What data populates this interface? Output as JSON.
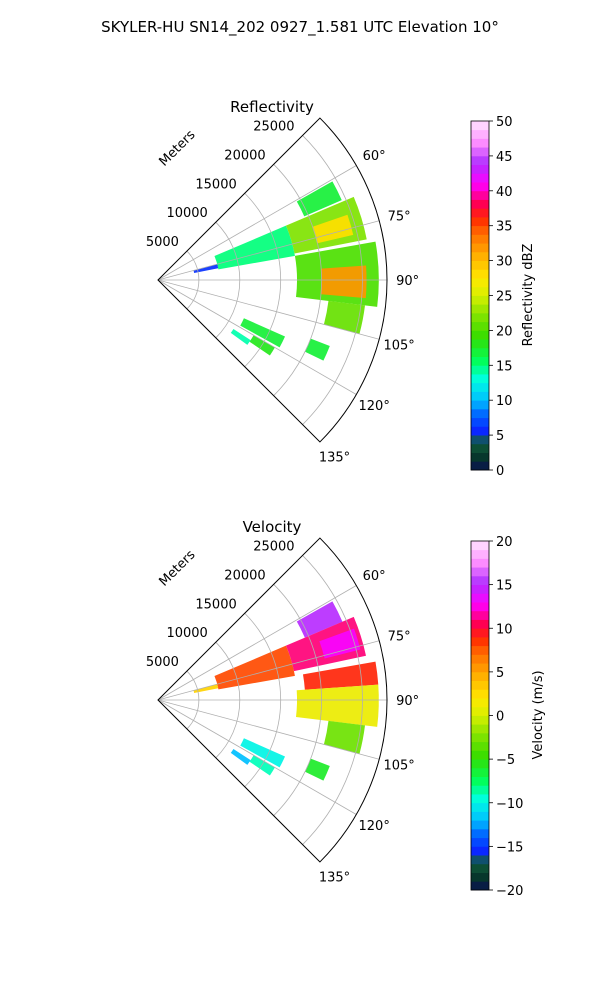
{
  "suptitle": "SKYLER-HU  SN14_202  0927_1.581 UTC Elevation 10°",
  "chart_data": [
    {
      "type": "heatmap",
      "title": "Reflectivity",
      "projection": "polar-sector",
      "theta_range_deg": [
        45,
        135
      ],
      "r_range_m": [
        0,
        28000
      ],
      "r_axis_label": "Meters",
      "r_ticks": [
        5000,
        10000,
        15000,
        20000,
        25000
      ],
      "r_tick_labels": [
        "5000",
        "10000",
        "15000",
        "20000",
        "25000"
      ],
      "theta_ticks": [
        60,
        75,
        90,
        105,
        120,
        135
      ],
      "theta_tick_labels": [
        "60°",
        "75°",
        "90°",
        "105°",
        "120°",
        "135°"
      ],
      "grid": true,
      "colorbar": {
        "label": "Reflectivity dBZ",
        "range": [
          0,
          50
        ],
        "ticks": [
          0,
          5,
          10,
          15,
          20,
          25,
          30,
          35,
          40,
          45,
          50
        ],
        "tick_labels": [
          "0",
          "5",
          "10",
          "15",
          "20",
          "25",
          "30",
          "35",
          "40",
          "45",
          "50"
        ]
      },
      "cells": [
        {
          "theta_range": [
            60.5,
            66.5
          ],
          "r_range": [
            19500,
            24500
          ],
          "value": 17
        },
        {
          "theta_range": [
            67,
            80
          ],
          "r_range": [
            7500,
            17000
          ],
          "value": 15
        },
        {
          "theta_range": [
            67,
            79
          ],
          "r_range": [
            17000,
            26000
          ],
          "value": 22
        },
        {
          "theta_range": [
            71,
            77
          ],
          "r_range": [
            20000,
            24500
          ],
          "value": 28
        },
        {
          "theta_range": [
            75,
            79
          ],
          "r_range": [
            4500,
            7500
          ],
          "value": 6
        },
        {
          "theta_range": [
            80,
            97
          ],
          "r_range": [
            17000,
            27000
          ],
          "value": 20
        },
        {
          "theta_range": [
            86,
            95
          ],
          "r_range": [
            20000,
            25500
          ],
          "value": 32
        },
        {
          "theta_range": [
            97,
            105
          ],
          "r_range": [
            21000,
            25500
          ],
          "value": 21
        },
        {
          "theta_range": [
            111,
            116
          ],
          "r_range": [
            20000,
            22500
          ],
          "value": 17
        },
        {
          "theta_range": [
            114,
            119
          ],
          "r_range": [
            11500,
            17000
          ],
          "value": 17
        },
        {
          "theta_range": [
            120,
            124
          ],
          "r_range": [
            13500,
            16500
          ],
          "value": 18
        },
        {
          "theta_range": [
            123,
            126
          ],
          "r_range": [
            11000,
            13500
          ],
          "value": 14
        }
      ]
    },
    {
      "type": "heatmap",
      "title": "Velocity",
      "projection": "polar-sector",
      "theta_range_deg": [
        45,
        135
      ],
      "r_range_m": [
        0,
        28000
      ],
      "r_axis_label": "Meters",
      "r_ticks": [
        5000,
        10000,
        15000,
        20000,
        25000
      ],
      "r_tick_labels": [
        "5000",
        "10000",
        "15000",
        "20000",
        "25000"
      ],
      "theta_ticks": [
        60,
        75,
        90,
        105,
        120,
        135
      ],
      "theta_tick_labels": [
        "60°",
        "75°",
        "90°",
        "105°",
        "120°",
        "135°"
      ],
      "grid": true,
      "colorbar": {
        "label": "Velocity (m/s)",
        "range": [
          -20,
          20
        ],
        "ticks": [
          -20,
          -15,
          -10,
          -5,
          0,
          5,
          10,
          15,
          20
        ],
        "tick_labels": [
          "−20",
          "−15",
          "−10",
          "−5",
          "0",
          "5",
          "10",
          "15",
          "20"
        ]
      },
      "cells": [
        {
          "theta_range": [
            60.5,
            67
          ],
          "r_range": [
            19500,
            24500
          ],
          "value": 15
        },
        {
          "theta_range": [
            67,
            80
          ],
          "r_range": [
            7500,
            17000
          ],
          "value": 8
        },
        {
          "theta_range": [
            67,
            78
          ],
          "r_range": [
            17000,
            26000
          ],
          "value": 11
        },
        {
          "theta_range": [
            70,
            76
          ],
          "r_range": [
            21000,
            25500
          ],
          "value": 13
        },
        {
          "theta_range": [
            75,
            79
          ],
          "r_range": [
            4500,
            7500
          ],
          "value": 3
        },
        {
          "theta_range": [
            80,
            86
          ],
          "r_range": [
            18000,
            27000
          ],
          "value": 9
        },
        {
          "theta_range": [
            86,
            97
          ],
          "r_range": [
            17000,
            27000
          ],
          "value": 1
        },
        {
          "theta_range": [
            97,
            105
          ],
          "r_range": [
            21000,
            25500
          ],
          "value": -3
        },
        {
          "theta_range": [
            111,
            116
          ],
          "r_range": [
            20000,
            22500
          ],
          "value": -6
        },
        {
          "theta_range": [
            114,
            119
          ],
          "r_range": [
            11500,
            17000
          ],
          "value": -10
        },
        {
          "theta_range": [
            120,
            124
          ],
          "r_range": [
            13500,
            16500
          ],
          "value": -9
        },
        {
          "theta_range": [
            123,
            126
          ],
          "r_range": [
            11000,
            13500
          ],
          "value": -12
        }
      ]
    }
  ],
  "colormap_stops": [
    {
      "at": 0.0,
      "color": "#0a1050"
    },
    {
      "at": 0.04,
      "color": "#073a2a"
    },
    {
      "at": 0.08,
      "color": "#115e3e"
    },
    {
      "at": 0.11,
      "color": "#0a24ff"
    },
    {
      "at": 0.16,
      "color": "#0066ff"
    },
    {
      "at": 0.2,
      "color": "#00bfff"
    },
    {
      "at": 0.26,
      "color": "#00ffe0"
    },
    {
      "at": 0.31,
      "color": "#00ff60"
    },
    {
      "at": 0.38,
      "color": "#33dd00"
    },
    {
      "at": 0.45,
      "color": "#8ce400"
    },
    {
      "at": 0.5,
      "color": "#d8f000"
    },
    {
      "at": 0.55,
      "color": "#ffe800"
    },
    {
      "at": 0.62,
      "color": "#ffaa00"
    },
    {
      "at": 0.68,
      "color": "#ff6a00"
    },
    {
      "at": 0.72,
      "color": "#ff2a00"
    },
    {
      "at": 0.76,
      "color": "#ff004a"
    },
    {
      "at": 0.82,
      "color": "#ff00ff"
    },
    {
      "at": 0.88,
      "color": "#b030ff"
    },
    {
      "at": 0.94,
      "color": "#ff90ff"
    },
    {
      "at": 1.0,
      "color": "#ffe6ff"
    }
  ]
}
